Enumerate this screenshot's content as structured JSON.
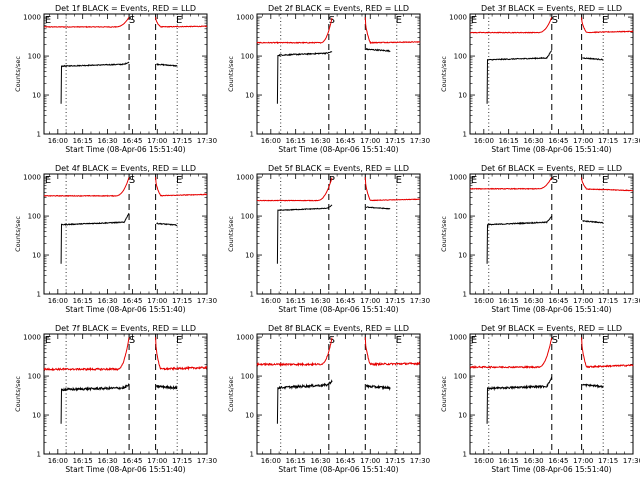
{
  "chart_data": {
    "type": "line",
    "y_scale": "log",
    "ylim": [
      1,
      1200
    ],
    "y_ticks": [
      "1",
      "10",
      "100",
      "1000"
    ],
    "xlim": [
      "15:51:40",
      "17:30"
    ],
    "x_ticks": [
      "16:00",
      "16:15",
      "16:30",
      "16:45",
      "17:00",
      "17:15",
      "17:30"
    ],
    "xlabel": "Start Time (08-Apr-06 15:51:40)",
    "ylabel": "Counts/sec",
    "grid": false,
    "series_colors": {
      "events": "#000000",
      "lld": "#e60000"
    },
    "panels": [
      {
        "title": "Det 1f BLACK = Events, RED = LLD",
        "markers": [
          "E",
          "S",
          "E"
        ],
        "dotted_x": [
          "16:05",
          "17:12"
        ],
        "dashed_x": [
          "16:43",
          "16:59"
        ],
        "gap": [
          "16:43",
          "16:59"
        ],
        "lld_base": 560,
        "lld_end": 580,
        "lld_rise_start": "16:35",
        "lld_peak": 1000,
        "events_start": "16:02",
        "events_base": 55,
        "events_end": 62,
        "events_spike": 70,
        "post_events": 62,
        "post_events_end": "17:12",
        "noise": 0.04
      },
      {
        "title": "Det 2f BLACK = Events, RED = LLD",
        "markers": [
          "S",
          "E"
        ],
        "dotted_x": [
          "16:06",
          "17:16"
        ],
        "dashed_x": [
          "16:35",
          "16:57"
        ],
        "gap": [
          "16:37",
          "16:57"
        ],
        "lld_base": 220,
        "lld_end": 230,
        "lld_rise_start": "16:30",
        "lld_peak": 1000,
        "events_start": "16:04",
        "events_base": 105,
        "events_end": 120,
        "events_spike": 130,
        "post_events": 150,
        "post_events_end": "17:12",
        "noise": 0.05
      },
      {
        "title": "Det 3f BLACK = Events, RED = LLD",
        "markers": [
          "E",
          "S",
          "E"
        ],
        "dotted_x": [
          "16:03",
          "17:12"
        ],
        "dashed_x": [
          "16:41",
          "16:59"
        ],
        "gap": [
          "16:41",
          "16:59"
        ],
        "lld_base": 400,
        "lld_end": 430,
        "lld_rise_start": "16:33",
        "lld_peak": 1000,
        "events_start": "16:02",
        "events_base": 80,
        "events_end": 90,
        "events_spike": 140,
        "post_events": 90,
        "post_events_end": "17:12",
        "noise": 0.04
      },
      {
        "title": "Det 4f BLACK = Events, RED = LLD",
        "markers": [
          "E",
          "S",
          "E"
        ],
        "dotted_x": [
          "16:05",
          "17:12"
        ],
        "dashed_x": [
          "16:43",
          "16:59"
        ],
        "gap": [
          "16:43",
          "16:59"
        ],
        "lld_base": 330,
        "lld_end": 360,
        "lld_rise_start": "16:35",
        "lld_peak": 1000,
        "events_start": "16:02",
        "events_base": 60,
        "events_end": 70,
        "events_spike": 120,
        "post_events": 65,
        "post_events_end": "17:12",
        "noise": 0.04
      },
      {
        "title": "Det 5f BLACK = Events, RED = LLD",
        "markers": [
          "P",
          "E"
        ],
        "dotted_x": [
          "16:06",
          "17:16"
        ],
        "dashed_x": [
          "16:35",
          "16:57"
        ],
        "gap": [
          "16:37",
          "16:57"
        ],
        "lld_base": 250,
        "lld_end": 270,
        "lld_rise_start": "16:28",
        "lld_peak": 1000,
        "events_start": "16:04",
        "events_base": 140,
        "events_end": 160,
        "events_spike": 190,
        "post_events": 170,
        "post_events_end": "17:12",
        "noise": 0.03
      },
      {
        "title": "Det 6f BLACK = Events, RED = LLD",
        "markers": [
          "E",
          "S",
          "E"
        ],
        "dotted_x": [
          "16:03",
          "17:12"
        ],
        "dashed_x": [
          "16:41",
          "16:59"
        ],
        "gap": [
          "16:41",
          "16:59"
        ],
        "lld_base": 500,
        "lld_end": 450,
        "lld_rise_start": "16:33",
        "lld_peak": 1000,
        "events_start": "16:02",
        "events_base": 60,
        "events_end": 70,
        "events_spike": 100,
        "post_events": 75,
        "post_events_end": "17:12",
        "noise": 0.04
      },
      {
        "title": "Det 7f BLACK = Events, RED = LLD",
        "markers": [
          "E",
          "S",
          "E"
        ],
        "dotted_x": [
          "16:05",
          "17:12"
        ],
        "dashed_x": [
          "16:43",
          "16:59"
        ],
        "gap": [
          "16:43",
          "16:59"
        ],
        "lld_base": 150,
        "lld_end": 165,
        "lld_rise_start": "16:36",
        "lld_peak": 1000,
        "events_start": "16:02",
        "events_base": 45,
        "events_end": 50,
        "events_spike": 60,
        "post_events": 55,
        "post_events_end": "17:12",
        "noise": 0.1
      },
      {
        "title": "Det 8f BLACK = Events, RED = LLD",
        "markers": [
          "S",
          "E"
        ],
        "dotted_x": [
          "16:06",
          "17:16"
        ],
        "dashed_x": [
          "16:35",
          "16:57"
        ],
        "gap": [
          "16:37",
          "16:57"
        ],
        "lld_base": 200,
        "lld_end": 210,
        "lld_rise_start": "16:30",
        "lld_peak": 1000,
        "events_start": "16:04",
        "events_base": 50,
        "events_end": 60,
        "events_spike": 75,
        "post_events": 55,
        "post_events_end": "17:12",
        "noise": 0.1
      },
      {
        "title": "Det 9f BLACK = Events, RED = LLD",
        "markers": [
          "E",
          "S",
          "E"
        ],
        "dotted_x": [
          "16:03",
          "17:12"
        ],
        "dashed_x": [
          "16:41",
          "16:59"
        ],
        "gap": [
          "16:41",
          "16:59"
        ],
        "lld_base": 170,
        "lld_end": 190,
        "lld_rise_start": "16:33",
        "lld_peak": 1000,
        "events_start": "16:02",
        "events_base": 48,
        "events_end": 55,
        "events_spike": 90,
        "post_events": 60,
        "post_events_end": "17:12",
        "noise": 0.08
      }
    ]
  }
}
